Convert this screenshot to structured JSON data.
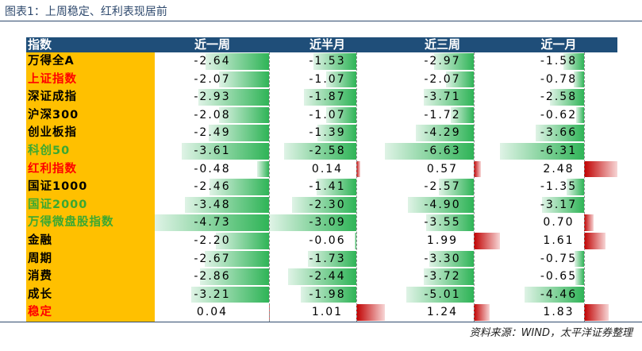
{
  "caption": "图表1：上周稳定、红利表现居前",
  "source": "资料来源：WIND，太平洋证券整理",
  "headers": [
    "指数",
    "近一周",
    "近半月",
    "近三周",
    "近一月"
  ],
  "colors": {
    "header_bg": "#1f4e79",
    "name_bg": "#ffc000",
    "neg_bar": "#2fb457",
    "pos_bar": "#c00000"
  },
  "rows": [
    {
      "name": "万得全A",
      "color": "#000000",
      "values": [
        "-2.64",
        "-1.53",
        "-2.97",
        "-1.58"
      ]
    },
    {
      "name": "上证指数",
      "color": "#ff0000",
      "values": [
        "-2.07",
        "-1.07",
        "-2.07",
        "-0.78"
      ]
    },
    {
      "name": "深证成指",
      "color": "#000000",
      "values": [
        "-2.93",
        "-1.87",
        "-3.71",
        "-2.58"
      ]
    },
    {
      "name": "沪深300",
      "color": "#000000",
      "values": [
        "-2.08",
        "-1.07",
        "-1.72",
        "-0.62"
      ]
    },
    {
      "name": "创业板指",
      "color": "#000000",
      "values": [
        "-2.49",
        "-1.39",
        "-4.29",
        "-3.66"
      ]
    },
    {
      "name": "科创50",
      "color": "#3aa832",
      "values": [
        "-3.61",
        "-2.58",
        "-6.63",
        "-6.31"
      ]
    },
    {
      "name": "红利指数",
      "color": "#ff0000",
      "values": [
        "-0.48",
        "0.14",
        "0.57",
        "2.48"
      ]
    },
    {
      "name": "国证1000",
      "color": "#000000",
      "values": [
        "-2.46",
        "-1.41",
        "-2.57",
        "-1.35"
      ]
    },
    {
      "name": "国证2000",
      "color": "#3aa832",
      "values": [
        "-3.48",
        "-2.30",
        "-4.90",
        "-3.17"
      ]
    },
    {
      "name": "万得微盘股指数",
      "color": "#3aa832",
      "values": [
        "-4.73",
        "-3.09",
        "-3.55",
        "0.70"
      ]
    },
    {
      "name": "金融",
      "color": "#000000",
      "values": [
        "-2.20",
        "-0.06",
        "1.99",
        "1.61"
      ]
    },
    {
      "name": "周期",
      "color": "#000000",
      "values": [
        "-2.67",
        "-1.73",
        "-3.30",
        "-0.75"
      ]
    },
    {
      "name": "消费",
      "color": "#000000",
      "values": [
        "-2.86",
        "-2.44",
        "-3.72",
        "-0.65"
      ]
    },
    {
      "name": "成长",
      "color": "#000000",
      "values": [
        "-3.21",
        "-1.98",
        "-5.01",
        "-4.46"
      ]
    },
    {
      "name": "稳定",
      "color": "#ff0000",
      "values": [
        "0.04",
        "1.01",
        "1.24",
        "1.83"
      ]
    }
  ]
}
